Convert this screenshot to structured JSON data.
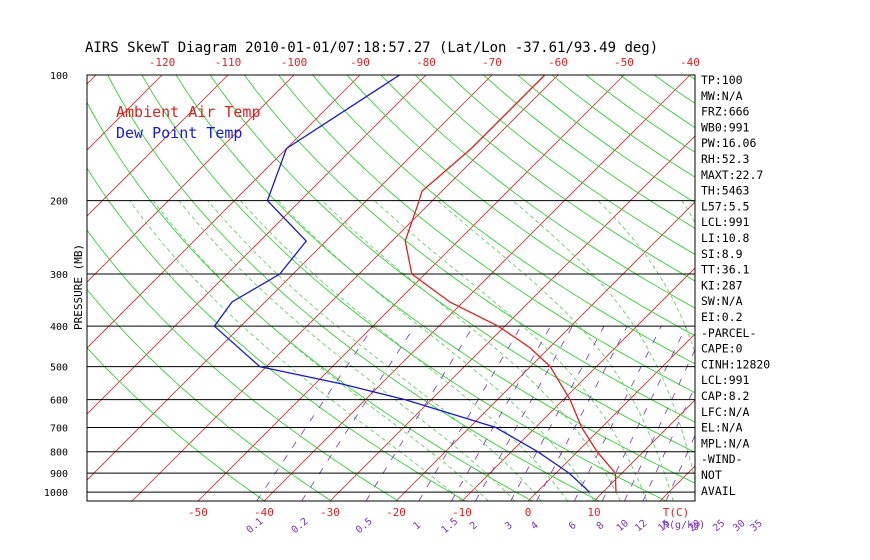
{
  "chart_data": {
    "type": "line",
    "title": "AIRS SkewT Diagram 2010-01-01/07:18:57.27 (Lat/Lon -37.61/93.49 deg)",
    "ylabel": "PRESSURE (MB)",
    "top_temp_ticks": [
      "-120",
      "-110",
      "-100",
      "-90",
      "-80",
      "-70",
      "-60",
      "-50",
      "-40"
    ],
    "bottom_temp_ticks": [
      "-50",
      "-40",
      "-30",
      "-20",
      "-10",
      "0",
      "10"
    ],
    "bottom_temp_unit": "T(C)",
    "mixing_ratio_ticks": [
      "0.1",
      "0.2",
      "0.5",
      "1",
      "1.5",
      "2",
      "3",
      "4",
      "6",
      "8",
      "10",
      "12",
      "15",
      "20",
      "25",
      "30",
      "35"
    ],
    "mixing_ratio_unit": "R(g/kg)",
    "pressure_ticks": [
      "100",
      "200",
      "300",
      "400",
      "500",
      "600",
      "700",
      "800",
      "900",
      "1000"
    ],
    "legend": {
      "placement": "top-left",
      "entries": [
        {
          "label": "Ambient Air Temp",
          "color": "#e02020"
        },
        {
          "label": "Dew Point Temp",
          "color": "#1a1acc"
        }
      ]
    },
    "colors": {
      "isotherm": "#dd2222",
      "dry_adiabat": "#22cc22",
      "moist_adiabat": "#55cc55",
      "mixing_ratio": "#7a33bb",
      "isobar": "#000000"
    },
    "series": [
      {
        "name": "Ambient Air Temp",
        "points": [
          [
            100,
            -62
          ],
          [
            150,
            -62
          ],
          [
            190,
            -63
          ],
          [
            200,
            -62
          ],
          [
            250,
            -58
          ],
          [
            300,
            -52
          ],
          [
            350,
            -42
          ],
          [
            400,
            -31
          ],
          [
            450,
            -23
          ],
          [
            500,
            -17
          ],
          [
            600,
            -9
          ],
          [
            700,
            -3
          ],
          [
            800,
            3
          ],
          [
            900,
            9
          ],
          [
            1000,
            12
          ]
        ]
      },
      {
        "name": "Dew Point Temp",
        "points": [
          [
            100,
            -84
          ],
          [
            150,
            -90
          ],
          [
            200,
            -85
          ],
          [
            250,
            -73
          ],
          [
            300,
            -72
          ],
          [
            350,
            -75
          ],
          [
            400,
            -74
          ],
          [
            500,
            -61
          ],
          [
            550,
            -46
          ],
          [
            600,
            -34
          ],
          [
            700,
            -16
          ],
          [
            800,
            -6
          ],
          [
            900,
            2
          ],
          [
            1000,
            8
          ]
        ]
      }
    ]
  },
  "indices": [
    "TP:100",
    "MW:N/A",
    "FRZ:666",
    "WB0:991",
    "PW:16.06",
    "RH:52.3",
    "MAXT:22.7",
    "TH:5463",
    "L57:5.5",
    "LCL:991",
    "LI:10.8",
    "SI:8.9",
    "TT:36.1",
    "KI:287",
    "SW:N/A",
    "EI:0.2",
    "-PARCEL-",
    "CAPE:0",
    "CINH:12820",
    "LCL:991",
    "CAP:8.2",
    "LFC:N/A",
    "EL:N/A",
    "MPL:N/A",
    "-WIND-",
    "NOT",
    "AVAIL"
  ]
}
